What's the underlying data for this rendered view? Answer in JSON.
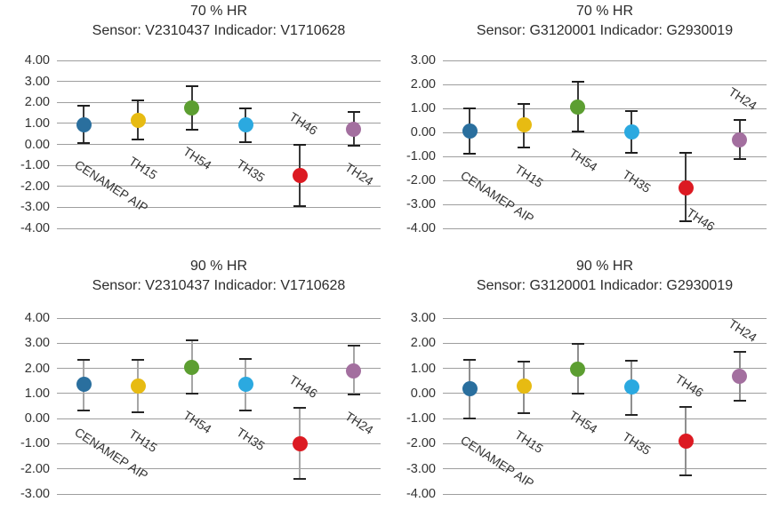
{
  "page": {
    "background": "#ffffff"
  },
  "series_colors": {
    "CENAMEP AIP": "#2A6F9E",
    "TH15": "#E7BB12",
    "TH54": "#5C9E31",
    "TH35": "#2BA9E0",
    "TH46": "#DC1A22",
    "TH24": "#A36F9F"
  },
  "chart_data": [
    {
      "type": "scatter",
      "id": "70hr-sensor-v",
      "title": "70 % HR",
      "subtitle": "Sensor: V2310437 Indicador: V1710628",
      "categories": [
        "CENAMEP AIP",
        "TH15",
        "TH54",
        "TH35",
        "TH46",
        "TH24"
      ],
      "ylim": [
        -4,
        4
      ],
      "ytick_step": 1,
      "ytick_labels": [
        "4.00",
        "3.00",
        "2.00",
        "1.00",
        "0.00",
        "-1.00",
        "-2.00",
        "-3.00",
        "-4.00"
      ],
      "grid": true,
      "legend": "none",
      "xlabel": "",
      "ylabel": "",
      "errorbar": {
        "line_color": "#3a3a3a",
        "cap_color": "#1f1f1f"
      },
      "points": [
        {
          "label": "CENAMEP AIP",
          "value": 0.93,
          "lo": 0.05,
          "hi": 1.85,
          "color": "#2A6F9E",
          "label_pos": "below"
        },
        {
          "label": "TH15",
          "value": 1.15,
          "lo": 0.25,
          "hi": 2.1,
          "color": "#E7BB12",
          "label_pos": "below"
        },
        {
          "label": "TH54",
          "value": 1.72,
          "lo": 0.68,
          "hi": 2.78,
          "color": "#5C9E31",
          "label_pos": "below"
        },
        {
          "label": "TH35",
          "value": 0.92,
          "lo": 0.1,
          "hi": 1.72,
          "color": "#2BA9E0",
          "label_pos": "below"
        },
        {
          "label": "TH46",
          "value": -1.48,
          "lo": -2.93,
          "hi": 0.0,
          "color": "#DC1A22",
          "label_pos": "above"
        },
        {
          "label": "TH24",
          "value": 0.72,
          "lo": -0.07,
          "hi": 1.53,
          "color": "#A36F9F",
          "label_pos": "below"
        }
      ]
    },
    {
      "type": "scatter",
      "id": "70hr-sensor-g",
      "title": "70 % HR",
      "subtitle": "Sensor: G3120001 Indicador: G2930019",
      "categories": [
        "CENAMEP AIP",
        "TH15",
        "TH54",
        "TH35",
        "TH46",
        "TH24"
      ],
      "ylim": [
        -4,
        3
      ],
      "ytick_step": 1,
      "ytick_labels": [
        "3.00",
        "2.00",
        "1.00",
        "0.00",
        "-1.00",
        "-2.00",
        "-3.00",
        "-4.00"
      ],
      "grid": true,
      "legend": "none",
      "xlabel": "",
      "ylabel": "",
      "errorbar": {
        "line_color": "#3a3a3a",
        "cap_color": "#1f1f1f"
      },
      "points": [
        {
          "label": "CENAMEP AIP",
          "value": 0.05,
          "lo": -0.9,
          "hi": 1.0,
          "color": "#2A6F9E",
          "label_pos": "below"
        },
        {
          "label": "TH15",
          "value": 0.3,
          "lo": -0.62,
          "hi": 1.2,
          "color": "#E7BB12",
          "label_pos": "below"
        },
        {
          "label": "TH54",
          "value": 1.05,
          "lo": 0.02,
          "hi": 2.1,
          "color": "#5C9E31",
          "label_pos": "below"
        },
        {
          "label": "TH35",
          "value": 0.03,
          "lo": -0.85,
          "hi": 0.9,
          "color": "#2BA9E0",
          "label_pos": "below"
        },
        {
          "label": "TH46",
          "value": -2.3,
          "lo": -3.72,
          "hi": -0.87,
          "color": "#DC1A22",
          "label_pos": "right-below"
        },
        {
          "label": "TH24",
          "value": -0.3,
          "lo": -1.1,
          "hi": 0.53,
          "color": "#A36F9F",
          "label_pos": "above"
        }
      ]
    },
    {
      "type": "scatter",
      "id": "90hr-sensor-v",
      "title": "90 % HR",
      "subtitle": "Sensor: V2310437 Indicador: V1710628",
      "categories": [
        "CENAMEP AIP",
        "TH15",
        "TH54",
        "TH35",
        "TH46",
        "TH24"
      ],
      "ylim": [
        -3,
        4
      ],
      "ytick_step": 1,
      "ytick_labels": [
        "4.00",
        "3.00",
        "2.00",
        "1.00",
        "0.00",
        "-1.00",
        "-2.00",
        "-3.00"
      ],
      "grid": true,
      "legend": "none",
      "xlabel": "",
      "ylabel": "",
      "errorbar": {
        "line_color": "#a6a6a6",
        "cap_color": "#262626"
      },
      "points": [
        {
          "label": "CENAMEP AIP",
          "value": 1.35,
          "lo": 0.33,
          "hi": 2.33,
          "color": "#2A6F9E",
          "label_pos": "below"
        },
        {
          "label": "TH15",
          "value": 1.3,
          "lo": 0.27,
          "hi": 2.35,
          "color": "#E7BB12",
          "label_pos": "below"
        },
        {
          "label": "TH54",
          "value": 2.05,
          "lo": 1.0,
          "hi": 3.1,
          "color": "#5C9E31",
          "label_pos": "below"
        },
        {
          "label": "TH35",
          "value": 1.35,
          "lo": 0.33,
          "hi": 2.38,
          "color": "#2BA9E0",
          "label_pos": "below"
        },
        {
          "label": "TH46",
          "value": -1.0,
          "lo": -2.4,
          "hi": 0.43,
          "color": "#DC1A22",
          "label_pos": "above"
        },
        {
          "label": "TH24",
          "value": 1.9,
          "lo": 0.95,
          "hi": 2.9,
          "color": "#A36F9F",
          "label_pos": "below"
        }
      ]
    },
    {
      "type": "scatter",
      "id": "90hr-sensor-g",
      "title": "90 % HR",
      "subtitle": "Sensor: G3120001 Indicador: G2930019",
      "categories": [
        "CENAMEP AIP",
        "TH15",
        "TH54",
        "TH35",
        "TH46",
        "TH24"
      ],
      "ylim": [
        -4,
        3
      ],
      "ytick_step": 1,
      "ytick_labels": [
        "3.00",
        "2.00",
        "1.00",
        "0.00",
        "-1.00",
        "-2.00",
        "-3.00",
        "-4.00"
      ],
      "grid": true,
      "legend": "none",
      "xlabel": "",
      "ylabel": "",
      "errorbar": {
        "line_color": "#8f8f8f",
        "cap_color": "#262626"
      },
      "points": [
        {
          "label": "CENAMEP AIP",
          "value": 0.2,
          "lo": -1.0,
          "hi": 1.35,
          "color": "#2A6F9E",
          "label_pos": "below"
        },
        {
          "label": "TH15",
          "value": 0.28,
          "lo": -0.8,
          "hi": 1.28,
          "color": "#E7BB12",
          "label_pos": "below"
        },
        {
          "label": "TH54",
          "value": 0.97,
          "lo": -0.02,
          "hi": 1.98,
          "color": "#5C9E31",
          "label_pos": "below"
        },
        {
          "label": "TH35",
          "value": 0.25,
          "lo": -0.85,
          "hi": 1.3,
          "color": "#2BA9E0",
          "label_pos": "below"
        },
        {
          "label": "TH46",
          "value": -1.9,
          "lo": -3.25,
          "hi": -0.55,
          "color": "#DC1A22",
          "label_pos": "above"
        },
        {
          "label": "TH24",
          "value": 0.7,
          "lo": -0.3,
          "hi": 1.65,
          "color": "#A36F9F",
          "label_pos": "above"
        }
      ]
    }
  ]
}
